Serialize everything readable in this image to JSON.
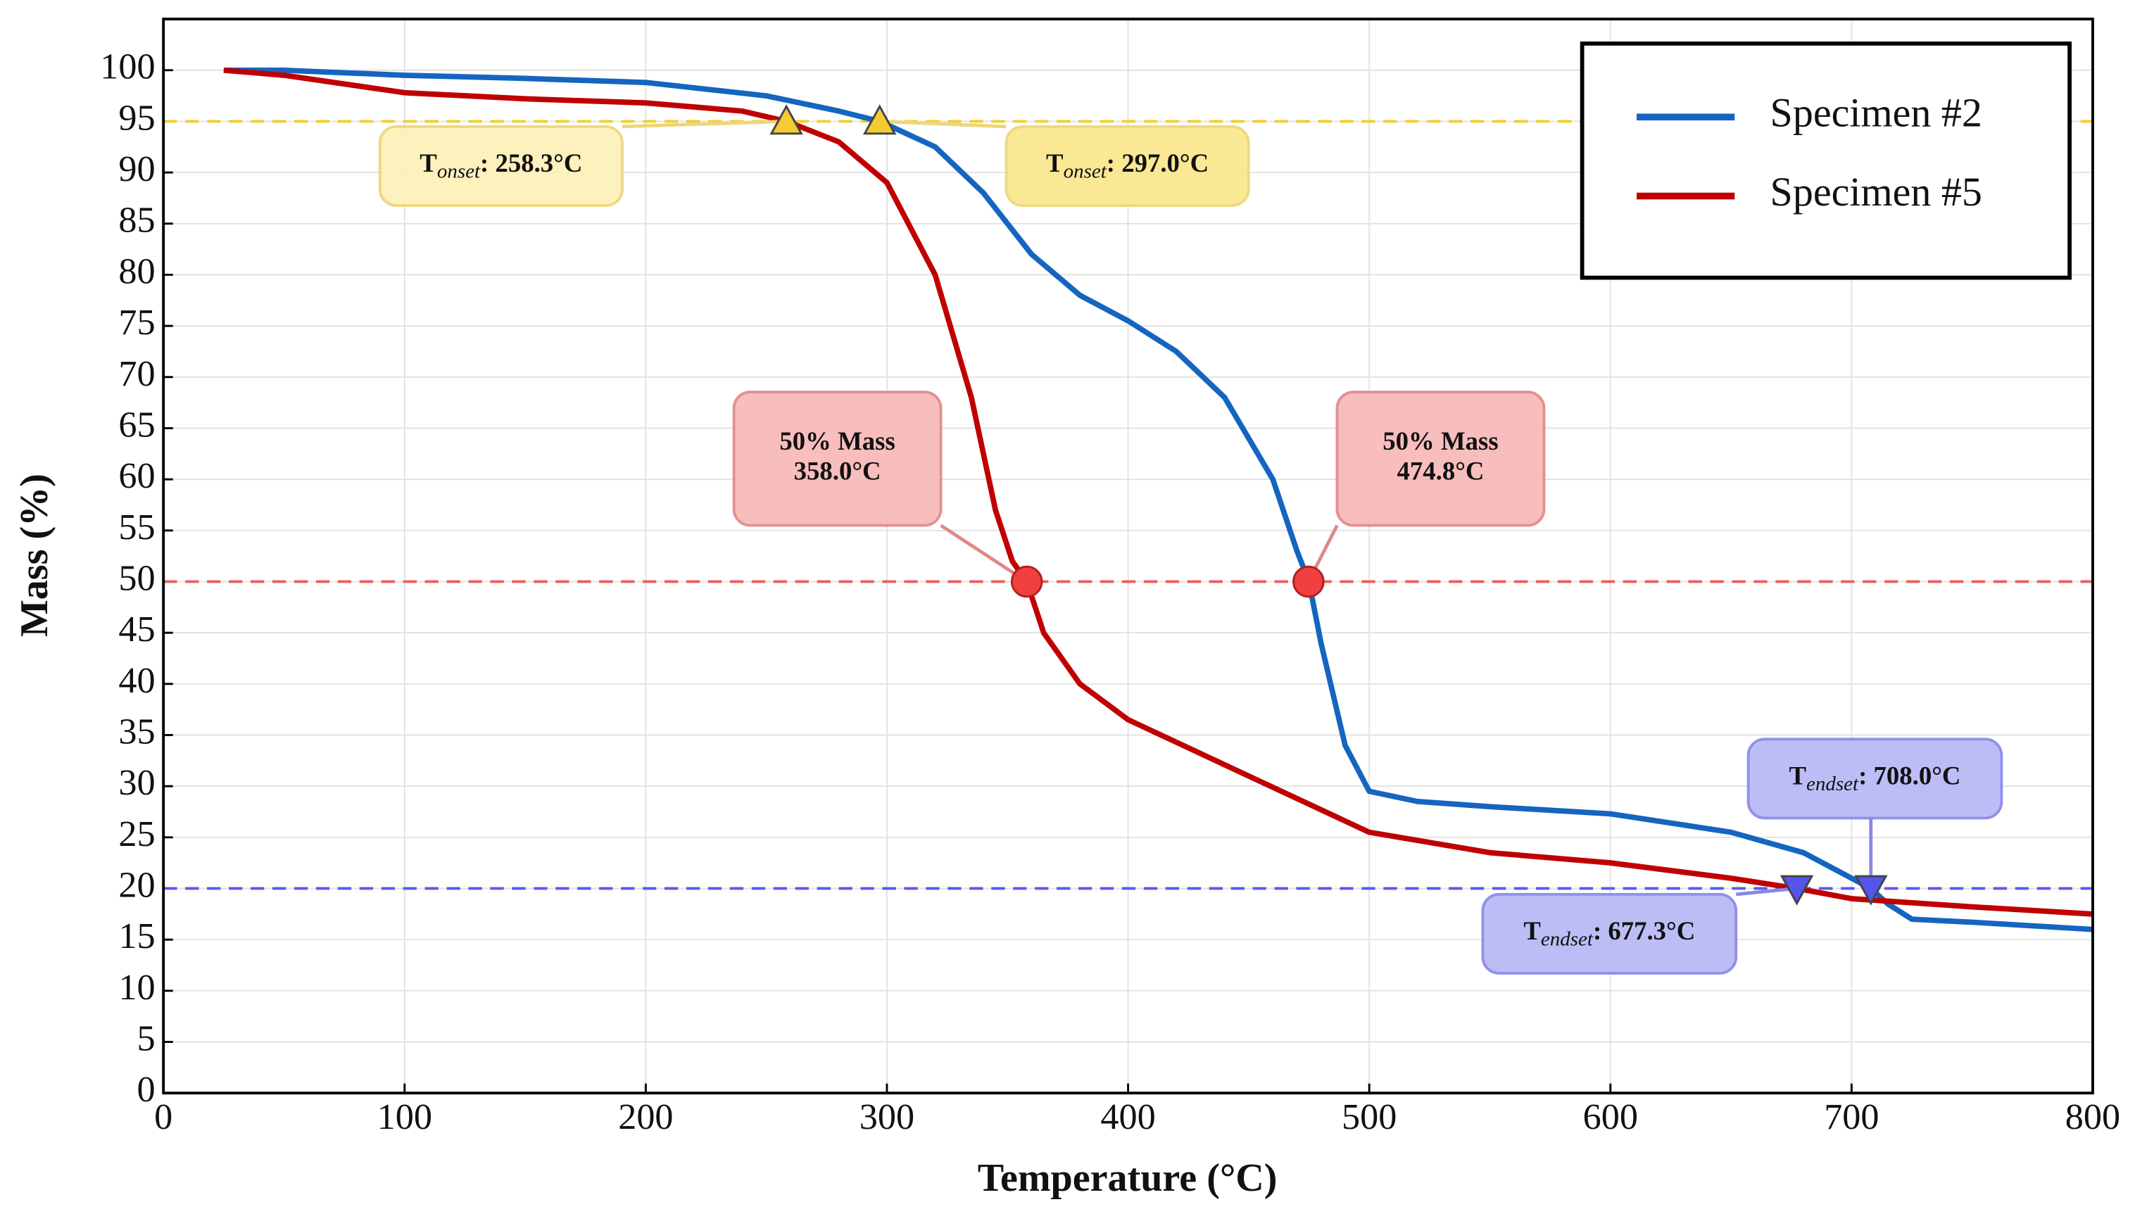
{
  "chart_data": {
    "type": "line",
    "x_label": "Temperature (°C)",
    "y_label": "Mass (%)",
    "xlim": [
      0,
      800
    ],
    "ylim": [
      0,
      105
    ],
    "xticks": [
      0,
      100,
      200,
      300,
      400,
      500,
      600,
      700,
      800
    ],
    "yticks": [
      0,
      5,
      10,
      15,
      20,
      25,
      30,
      35,
      40,
      45,
      50,
      55,
      60,
      65,
      70,
      75,
      80,
      85,
      90,
      95,
      100
    ],
    "grid": true,
    "legend_position": "upper right",
    "series": [
      {
        "name": "Specimen #2",
        "color": "#1565c0",
        "x": [
          25,
          50,
          100,
          150,
          200,
          250,
          280,
          297,
          320,
          340,
          360,
          380,
          400,
          420,
          440,
          460,
          470,
          475,
          480,
          490,
          500,
          520,
          550,
          600,
          650,
          680,
          700,
          708,
          715,
          725,
          750,
          800
        ],
        "values": [
          100,
          100,
          99.5,
          99.2,
          98.8,
          97.5,
          96,
          95,
          92.5,
          88,
          82,
          78,
          75.5,
          72.5,
          68,
          60,
          53,
          50,
          44,
          34,
          29.5,
          28.5,
          28,
          27.3,
          25.5,
          23.5,
          21,
          20,
          18.5,
          17,
          16.7,
          16
        ]
      },
      {
        "name": "Specimen #5",
        "color": "#c00000",
        "x": [
          25,
          50,
          100,
          150,
          200,
          240,
          258.3,
          280,
          300,
          320,
          335,
          345,
          352,
          358,
          365,
          380,
          400,
          450,
          500,
          550,
          600,
          650,
          677.3,
          700,
          750,
          800
        ],
        "values": [
          100,
          99.5,
          97.8,
          97.2,
          96.8,
          96,
          95,
          93,
          89,
          80,
          68,
          57,
          52,
          50,
          45,
          40,
          36.5,
          31,
          25.5,
          23.5,
          22.5,
          21,
          20,
          19,
          18.2,
          17.5
        ]
      }
    ],
    "reference_lines": [
      {
        "value": 95,
        "color": "#f0d030"
      },
      {
        "value": 50,
        "color": "#e86060"
      },
      {
        "value": 20,
        "color": "#5a5af0"
      }
    ],
    "annotations": [
      {
        "x": 258.3,
        "y": 95,
        "marker": "triangle-up",
        "color": "#f2cc30",
        "box_fill": "#fdf0b8",
        "box_stroke": "#ecd67a",
        "symbol": "T",
        "subscript": "onset",
        "label": ": 258.3°C"
      },
      {
        "x": 297.0,
        "y": 95,
        "marker": "triangle-up",
        "color": "#f2cc30",
        "box_fill": "#fbe78c",
        "box_stroke": "#ecd67a",
        "symbol": "T",
        "subscript": "onset",
        "label": ": 297.0°C"
      },
      {
        "x": 358.0,
        "y": 50,
        "marker": "circle",
        "color": "#f04040",
        "box_fill": "#f8b8b8",
        "box_stroke": "#e08888",
        "label_lines": [
          "50% Mass",
          "358.0°C"
        ]
      },
      {
        "x": 474.8,
        "y": 50,
        "marker": "circle",
        "color": "#f04040",
        "box_fill": "#f8b8b8",
        "box_stroke": "#e08888",
        "label_lines": [
          "50% Mass",
          "474.8°C"
        ]
      },
      {
        "x": 677.3,
        "y": 20,
        "marker": "triangle-down",
        "color": "#5555ee",
        "box_fill": "#b8b8f6",
        "box_stroke": "#8888e6",
        "symbol": "T",
        "subscript": "endset",
        "label": ": 677.3°C"
      },
      {
        "x": 708.0,
        "y": 20,
        "marker": "triangle-down",
        "color": "#5555ee",
        "box_fill": "#b8b8f6",
        "box_stroke": "#8888e6",
        "symbol": "T",
        "subscript": "endset",
        "label": ": 708.0°C"
      }
    ]
  }
}
